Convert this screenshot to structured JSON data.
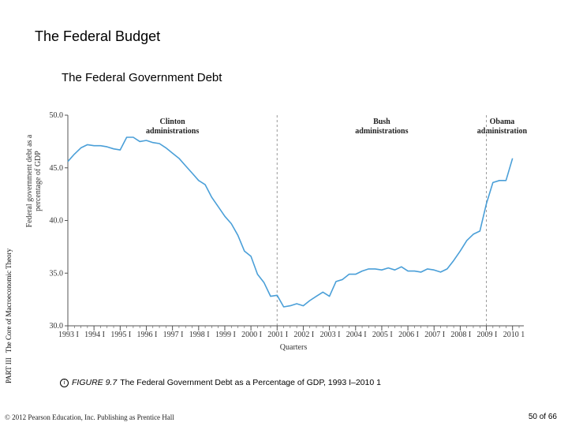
{
  "slide": {
    "title": "The Federal Budget",
    "subtitle": "The Federal Government Debt",
    "side_label_part": "PART III",
    "side_label_text": "The Core of Macroeconomic Theory",
    "caption_icon": "info-icon",
    "caption_icon_glyph": "i",
    "caption_figure_number": "FIGURE 9.7",
    "caption_text": "The Federal Government Debt as a Percentage of GDP, 1993 I–2010 1",
    "copyright": "© 2012 Pearson Education, Inc. Publishing as Prentice Hall",
    "page_number": "50 of 66"
  },
  "chart_data": {
    "type": "line",
    "title": "",
    "xlabel": "Quarters",
    "ylabel_lines": [
      "Federal government debt as a",
      "percentage of GDP"
    ],
    "ylim": [
      30,
      50
    ],
    "y_ticks": [
      "30.0",
      "35.0",
      "40.0",
      "45.0",
      "50.0"
    ],
    "y_tick_values": [
      30,
      35,
      40,
      45,
      50
    ],
    "x_ticks": [
      "1993 I",
      "1994 I",
      "1995 I",
      "1996 I",
      "1997 I",
      "1998 I",
      "1999 I",
      "2000 I",
      "2001 I",
      "2002 I",
      "2003 I",
      "2004 I",
      "2005 I",
      "2006 I",
      "2007 I",
      "2008 I",
      "2009 I",
      "2010 1"
    ],
    "x_tick_years": [
      1993,
      1994,
      1995,
      1996,
      1997,
      1998,
      1999,
      2000,
      2001,
      2002,
      2003,
      2004,
      2005,
      2006,
      2007,
      2008,
      2009,
      2010
    ],
    "xlim": [
      1993,
      2010.25
    ],
    "grid": false,
    "administration_dividers": [
      2001,
      2009
    ],
    "administrations": [
      {
        "lines": [
          "Clinton",
          "administrations"
        ],
        "center": 1997
      },
      {
        "lines": [
          "Bush",
          "administrations"
        ],
        "center": 2005
      },
      {
        "lines": [
          "Obama",
          "administration"
        ],
        "center": 2009.6
      }
    ],
    "series": [
      {
        "x": [
          1993.0,
          1993.25,
          1993.5,
          1993.75,
          1994.0,
          1994.25,
          1994.5,
          1994.75,
          1995.0,
          1995.25,
          1995.5,
          1995.75,
          1996.0,
          1996.25,
          1996.5,
          1996.75,
          1997.0,
          1997.25,
          1997.5,
          1997.75,
          1998.0,
          1998.25,
          1998.5,
          1998.75,
          1999.0,
          1999.25,
          1999.5,
          1999.75,
          2000.0,
          2000.25,
          2000.5,
          2000.75,
          2001.0,
          2001.25,
          2001.5,
          2001.75,
          2002.0,
          2002.25,
          2002.5,
          2002.75,
          2003.0,
          2003.25,
          2003.5,
          2003.75,
          2004.0,
          2004.25,
          2004.5,
          2004.75,
          2005.0,
          2005.25,
          2005.5,
          2005.75,
          2006.0,
          2006.25,
          2006.5,
          2006.75,
          2007.0,
          2007.25,
          2007.5,
          2007.75,
          2008.0,
          2008.25,
          2008.5,
          2008.75,
          2009.0,
          2009.25,
          2009.5,
          2009.75,
          2010.0
        ],
        "values": [
          45.6,
          46.3,
          46.9,
          47.2,
          47.1,
          47.1,
          47.0,
          46.8,
          46.7,
          47.9,
          47.9,
          47.5,
          47.6,
          47.4,
          47.3,
          46.9,
          46.4,
          45.9,
          45.2,
          44.5,
          43.8,
          43.4,
          42.2,
          41.3,
          40.4,
          39.7,
          38.6,
          37.1,
          36.6,
          34.9,
          34.1,
          32.8,
          32.9,
          31.8,
          31.9,
          32.1,
          31.9,
          32.4,
          32.8,
          33.2,
          32.8,
          34.2,
          34.4,
          34.9,
          34.9,
          35.2,
          35.4,
          35.4,
          35.3,
          35.5,
          35.3,
          35.6,
          35.2,
          35.2,
          35.1,
          35.4,
          35.3,
          35.1,
          35.4,
          36.2,
          37.1,
          38.1,
          38.7,
          39.0,
          41.6,
          43.6,
          43.8,
          43.8,
          45.9
        ]
      }
    ]
  },
  "colors": {
    "line": "#4a9fd8",
    "axis": "#555555",
    "divider": "#999999"
  }
}
